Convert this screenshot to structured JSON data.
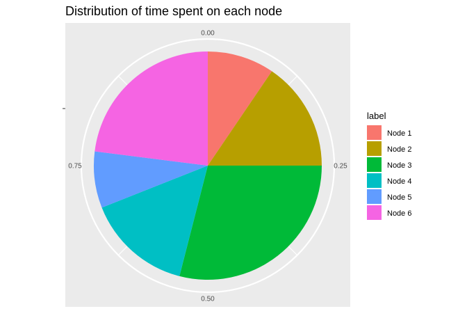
{
  "chart_data": {
    "type": "pie",
    "title": "Distribution of time spent on each node",
    "legend_title": "label",
    "legend_position": "right",
    "grid": true,
    "ticks": [
      {
        "value": 0.0,
        "label": "0.00"
      },
      {
        "value": 0.25,
        "label": "0.25"
      },
      {
        "value": 0.5,
        "label": "0.50"
      },
      {
        "value": 0.75,
        "label": "0.75"
      }
    ],
    "slices": [
      {
        "label": "Node 1",
        "value": 0.095,
        "color": "#F8766D"
      },
      {
        "label": "Node 2",
        "value": 0.155,
        "color": "#B79F00"
      },
      {
        "label": "Node 3",
        "value": 0.29,
        "color": "#00BA38"
      },
      {
        "label": "Node 4",
        "value": 0.15,
        "color": "#00BFC4"
      },
      {
        "label": "Node 5",
        "value": 0.08,
        "color": "#619CFF"
      },
      {
        "label": "Node 6",
        "value": 0.23,
        "color": "#F564E3"
      }
    ]
  }
}
